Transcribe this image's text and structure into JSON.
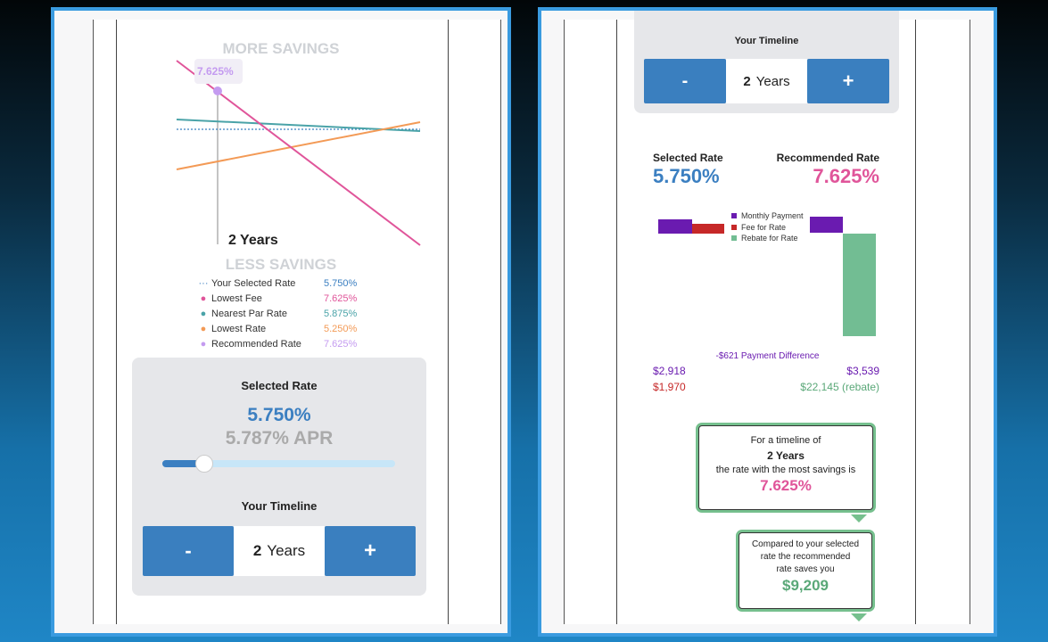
{
  "left": {
    "chart": {
      "top_label": "MORE SAVINGS",
      "bottom_label": "LESS SAVINGS",
      "marker_value": "7.625%",
      "timeline_label": "2 Years"
    },
    "legend": [
      {
        "symbol": "···",
        "label": "Your Selected Rate",
        "value": "5.750%",
        "color": "#3b7fc1"
      },
      {
        "symbol": "●",
        "label": "Lowest Fee",
        "value": "7.625%",
        "color": "#e0559a"
      },
      {
        "symbol": "●",
        "label": "Nearest Par Rate",
        "value": "5.875%",
        "color": "#4aa3a8"
      },
      {
        "symbol": "●",
        "label": "Lowest Rate",
        "value": "5.250%",
        "color": "#f39a56"
      },
      {
        "symbol": "●",
        "label": "Recommended Rate",
        "value": "7.625%",
        "color": "#c49bf0"
      }
    ],
    "selected_rate_card": {
      "title": "Selected Rate",
      "rate": "5.750%",
      "apr": "5.787% APR",
      "slider_fraction": 0.18,
      "timeline_title": "Your Timeline",
      "minus": "-",
      "timeline_value": "2",
      "timeline_unit": "Years",
      "plus": "+"
    }
  },
  "right": {
    "timeline_card": {
      "title": "Your Timeline",
      "minus": "-",
      "timeline_value": "2",
      "timeline_unit": "Years",
      "plus": "+"
    },
    "selected_rate_label": "Selected Rate",
    "selected_rate": "5.750%",
    "recommended_rate_label": "Recommended Rate",
    "recommended_rate": "7.625%",
    "legend": [
      {
        "label": "Monthly Payment",
        "color": "#6a1bb0"
      },
      {
        "label": "Fee for Rate",
        "color": "#c62828"
      },
      {
        "label": "Rebate for Rate",
        "color": "#72bd93"
      }
    ],
    "payment_difference": "-$621 Payment Difference",
    "selected_payment": "$2,918",
    "selected_fee": "$1,970",
    "recommended_payment": "$3,539",
    "recommended_rebate": "$22,145 (rebate)",
    "bubble1": {
      "line1": "For a timeline of",
      "line2": "2 Years",
      "line3": "the rate with the most savings is",
      "rate": "7.625%"
    },
    "bubble2": {
      "line1": "Compared to your selected",
      "line2": "rate the recommended",
      "line3": "rate saves you",
      "amount": "$9,209"
    }
  }
}
